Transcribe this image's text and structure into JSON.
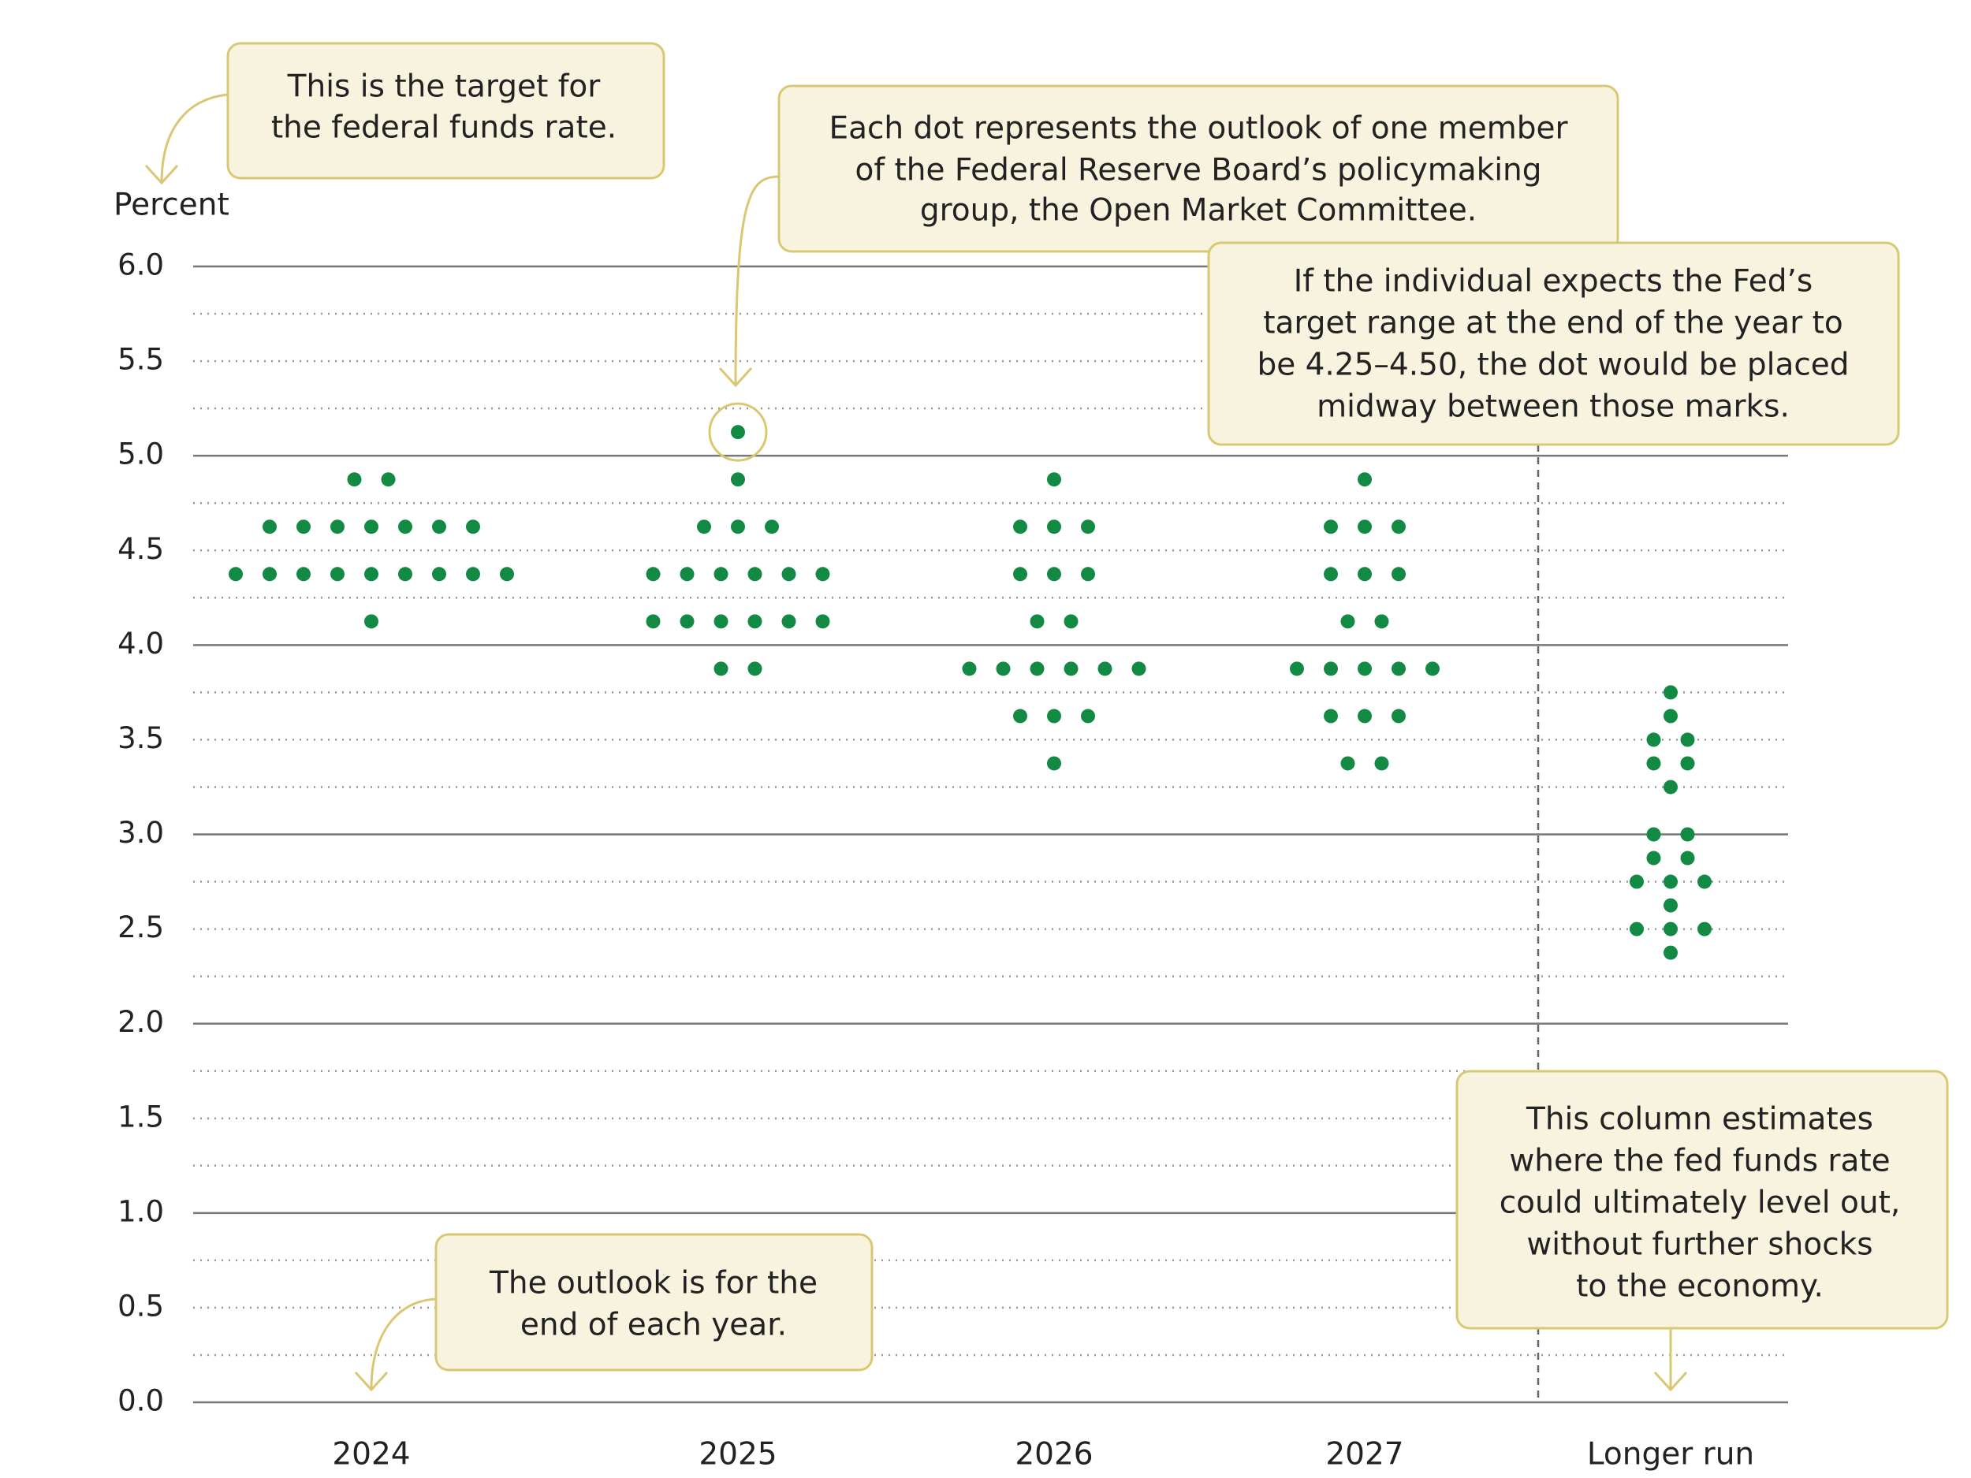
{
  "chart_data": {
    "type": "dot",
    "y_label": "Percent",
    "categories": [
      "2024",
      "2025",
      "2026",
      "2027",
      "Longer run"
    ],
    "dots": [
      [
        4.875,
        4.875,
        4.625,
        4.625,
        4.625,
        4.625,
        4.625,
        4.625,
        4.625,
        4.375,
        4.375,
        4.375,
        4.375,
        4.375,
        4.375,
        4.375,
        4.375,
        4.375,
        4.125
      ],
      [
        5.125,
        4.875,
        4.625,
        4.625,
        4.625,
        4.375,
        4.375,
        4.375,
        4.375,
        4.375,
        4.375,
        4.125,
        4.125,
        4.125,
        4.125,
        4.125,
        4.125,
        3.875,
        3.875
      ],
      [
        4.875,
        4.625,
        4.625,
        4.625,
        4.375,
        4.375,
        4.375,
        4.125,
        4.125,
        3.875,
        3.875,
        3.875,
        3.875,
        3.875,
        3.875,
        3.625,
        3.625,
        3.625,
        3.375
      ],
      [
        4.875,
        4.625,
        4.625,
        4.625,
        4.375,
        4.375,
        4.375,
        4.125,
        4.125,
        3.875,
        3.875,
        3.875,
        3.875,
        3.875,
        3.625,
        3.625,
        3.625,
        3.375,
        3.375
      ],
      [
        3.75,
        3.625,
        3.5,
        3.5,
        3.375,
        3.375,
        3.25,
        3.0,
        3.0,
        2.875,
        2.875,
        2.75,
        2.75,
        2.75,
        2.625,
        2.5,
        2.5,
        2.5,
        2.375
      ]
    ],
    "color": "#138a43",
    "ylim": [
      0,
      6
    ],
    "yticks": [
      {
        "value": 0,
        "label": "0.0"
      },
      {
        "value": 0.5,
        "label": "0.5"
      },
      {
        "value": 1,
        "label": "1.0"
      },
      {
        "value": 1.5,
        "label": "1.5"
      },
      {
        "value": 2,
        "label": "2.0"
      },
      {
        "value": 2.5,
        "label": "2.5"
      },
      {
        "value": 3,
        "label": "3.0"
      },
      {
        "value": 3.5,
        "label": "3.5"
      },
      {
        "value": 4,
        "label": "4.0"
      },
      {
        "value": 4.5,
        "label": "4.5"
      },
      {
        "value": 5,
        "label": "5.0"
      },
      {
        "value": 5.5,
        "label": "5.5"
      },
      {
        "value": 6,
        "label": "6.0"
      }
    ],
    "minor_yticks": [
      0.25,
      0.75,
      1.25,
      1.75,
      2.25,
      2.75,
      3.25,
      3.75,
      4.25,
      4.75,
      5.25,
      5.75
    ],
    "grid": true,
    "annotations": [
      [
        "This is the target for",
        "the federal funds rate."
      ],
      [
        "Each dot represents the outlook of one member",
        "of the Federal Reserve Board’s policymaking",
        "group, the Open Market Committee."
      ],
      [
        "If the individual expects the Fed’s",
        "target range at the end of the year to",
        "be 4.25–4.50, the dot would be placed",
        "midway between those marks."
      ],
      [
        "The outlook is for the",
        "end of each year."
      ],
      [
        "This column estimates",
        "where the fed funds rate",
        "could ultimately level out,",
        "without further shocks",
        "to the economy."
      ]
    ]
  }
}
